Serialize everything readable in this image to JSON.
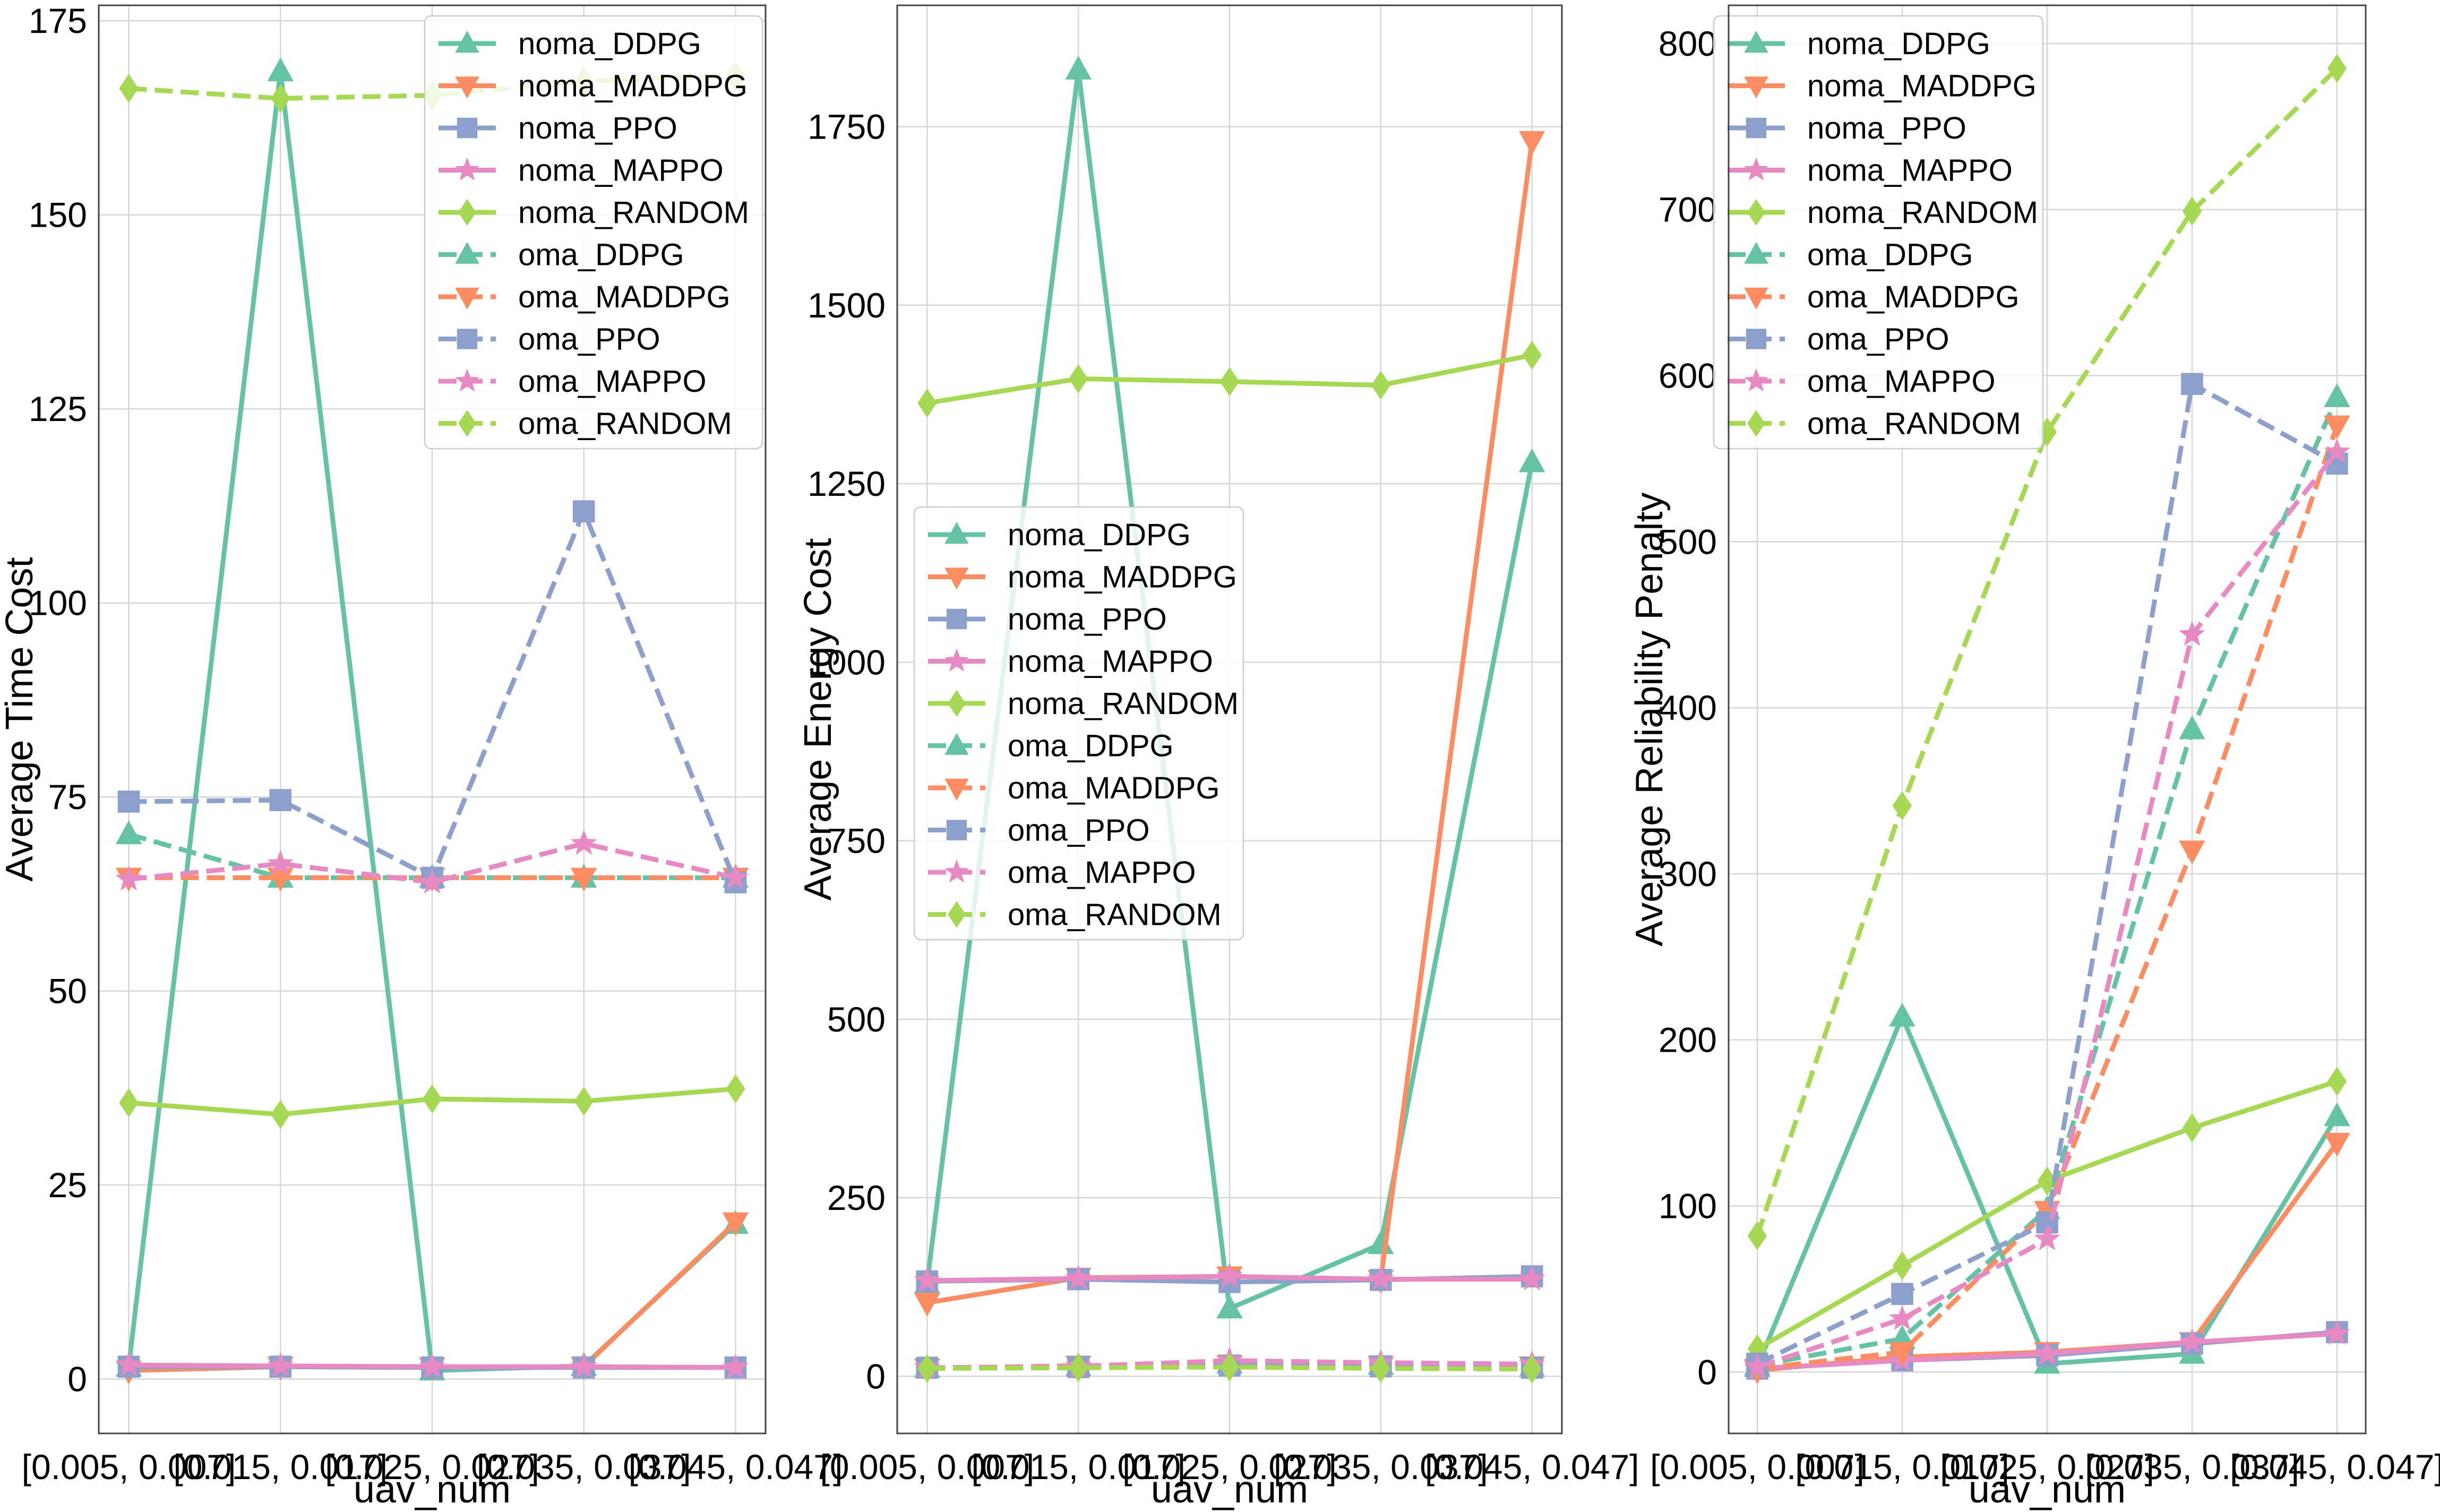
{
  "figure": {
    "style": {
      "colors": {
        "DDPG": "#66c2a5",
        "MADDPG": "#fc8d62",
        "PPO": "#8da0cb",
        "MAPPO": "#e78ac3",
        "RANDOM": "#a6d854"
      },
      "markers": {
        "DDPG": "triangle-up",
        "MADDPG": "triangle-down",
        "PPO": "square",
        "MAPPO": "star",
        "RANDOM": "diamond"
      },
      "line_styles": {
        "noma": "solid",
        "oma": "dashed"
      }
    }
  },
  "chart_data": [
    {
      "type": "line",
      "xlabel": "uav_num",
      "ylabel": "Average Time Cost",
      "categories": [
        "[0.005, 0.007]",
        "[0.015, 0.017]",
        "[0.025, 0.027]",
        "[0.035, 0.037]",
        "[0.045, 0.047]"
      ],
      "ylim": [
        -7,
        177
      ],
      "yticks": [
        0,
        25,
        50,
        75,
        100,
        125,
        150,
        175
      ],
      "grid": true,
      "legend": "top-right",
      "series": [
        {
          "name": "noma_DDPG",
          "values": [
            1.6,
            168.5,
            1.1,
            1.7,
            20.0
          ]
        },
        {
          "name": "noma_MADDPG",
          "values": [
            1.1,
            1.6,
            1.5,
            1.6,
            20.2
          ]
        },
        {
          "name": "noma_PPO",
          "values": [
            1.6,
            1.6,
            1.5,
            1.5,
            1.5
          ]
        },
        {
          "name": "noma_MAPPO",
          "values": [
            1.8,
            1.7,
            1.6,
            1.6,
            1.5
          ]
        },
        {
          "name": "noma_RANDOM",
          "values": [
            35.6,
            34.1,
            36.1,
            35.8,
            37.4
          ]
        },
        {
          "name": "oma_DDPG",
          "values": [
            70.2,
            64.6,
            64.6,
            64.6,
            64.6
          ]
        },
        {
          "name": "oma_MADDPG",
          "values": [
            64.6,
            64.6,
            64.6,
            64.6,
            64.6
          ]
        },
        {
          "name": "oma_PPO",
          "values": [
            74.4,
            74.6,
            64.6,
            111.8,
            64.0
          ]
        },
        {
          "name": "oma_MAPPO",
          "values": [
            64.4,
            66.4,
            64.0,
            69.0,
            64.6
          ]
        },
        {
          "name": "oma_RANDOM",
          "values": [
            166.3,
            165.0,
            165.4,
            167.2,
            167.9
          ]
        }
      ]
    },
    {
      "type": "line",
      "xlabel": "uav_num",
      "ylabel": "Average Energy Cost",
      "categories": [
        "[0.005, 0.007]",
        "[0.015, 0.017]",
        "[0.025, 0.027]",
        "[0.035, 0.037]",
        "[0.045, 0.047]"
      ],
      "ylim": [
        -80,
        1920
      ],
      "yticks": [
        0,
        250,
        500,
        750,
        1000,
        1250,
        1500,
        1750
      ],
      "grid": true,
      "legend": "center-left",
      "series": [
        {
          "name": "noma_DDPG",
          "values": [
            130,
            1830,
            95,
            185,
            1280
          ]
        },
        {
          "name": "noma_MADDPG",
          "values": [
            103,
            138,
            140,
            135,
            1730
          ]
        },
        {
          "name": "noma_PPO",
          "values": [
            133,
            136,
            132,
            135,
            140
          ]
        },
        {
          "name": "noma_MAPPO",
          "values": [
            134,
            137,
            140,
            136,
            136
          ]
        },
        {
          "name": "noma_RANDOM",
          "values": [
            1363,
            1397,
            1393,
            1388,
            1430
          ]
        },
        {
          "name": "oma_DDPG",
          "values": [
            12,
            14,
            18,
            16,
            13
          ]
        },
        {
          "name": "oma_MADDPG",
          "values": [
            11,
            15,
            16,
            15,
            14
          ]
        },
        {
          "name": "oma_PPO",
          "values": [
            12,
            13,
            15,
            14,
            12
          ]
        },
        {
          "name": "oma_MAPPO",
          "values": [
            12,
            14,
            22,
            19,
            17
          ]
        },
        {
          "name": "oma_RANDOM",
          "values": [
            11,
            12,
            13,
            11,
            10
          ]
        }
      ]
    },
    {
      "type": "line",
      "xlabel": "uav_num",
      "ylabel": "Average Reliability Penalty",
      "categories": [
        "[0.005, 0.007]",
        "[0.015, 0.017]",
        "[0.025, 0.027]",
        "[0.035, 0.037]",
        "[0.045, 0.047]"
      ],
      "ylim": [
        -37,
        823
      ],
      "yticks": [
        0,
        100,
        200,
        300,
        400,
        500,
        600,
        700,
        800
      ],
      "grid": true,
      "legend": "top-left",
      "series": [
        {
          "name": "noma_DDPG",
          "values": [
            3,
            214,
            5,
            11,
            154
          ]
        },
        {
          "name": "noma_MADDPG",
          "values": [
            1,
            9,
            12,
            18,
            138
          ]
        },
        {
          "name": "noma_PPO",
          "values": [
            2,
            7,
            10,
            17,
            24
          ]
        },
        {
          "name": "noma_MAPPO",
          "values": [
            2,
            7,
            11,
            18,
            23
          ]
        },
        {
          "name": "noma_RANDOM",
          "values": [
            14,
            64,
            115,
            147,
            175
          ]
        },
        {
          "name": "oma_DDPG",
          "values": [
            4,
            20,
            98,
            387,
            587
          ]
        },
        {
          "name": "oma_MADDPG",
          "values": [
            2,
            12,
            97,
            314,
            570
          ]
        },
        {
          "name": "oma_PPO",
          "values": [
            5,
            47,
            90,
            595,
            547
          ]
        },
        {
          "name": "oma_MAPPO",
          "values": [
            3,
            32,
            80,
            444,
            554
          ]
        },
        {
          "name": "oma_RANDOM",
          "values": [
            82,
            341,
            566,
            699,
            785
          ]
        }
      ]
    }
  ]
}
